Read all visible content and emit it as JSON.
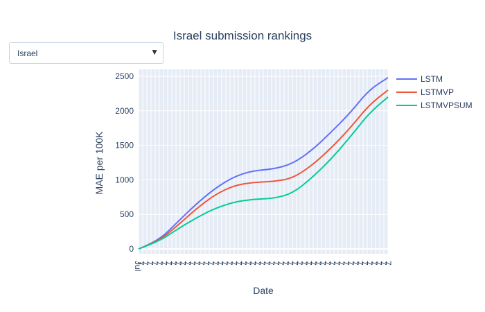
{
  "dropdown": {
    "selected": "Israel"
  },
  "chart_data": {
    "type": "line",
    "title": "Israel submission rankings",
    "xlabel": "Date",
    "ylabel": "MAE per 100K",
    "ylim": [
      -70,
      2600
    ],
    "yticks": [
      0,
      500,
      1000,
      1500,
      2000,
      2500
    ],
    "xticks_note": "dense rotated date labels (Jul ... Dec)",
    "grid": true,
    "legend": "top-right",
    "series": [
      {
        "name": "LSTM",
        "color": "#636efa",
        "values": [
          0,
          110,
          380,
          650,
          880,
          1050,
          1135,
          1155,
          1230,
          1420,
          1680,
          1960,
          2300,
          2480
        ]
      },
      {
        "name": "LSTMVP",
        "color": "#ef553b",
        "values": [
          0,
          105,
          330,
          580,
          790,
          920,
          965,
          975,
          1020,
          1200,
          1450,
          1740,
          2080,
          2300
        ]
      },
      {
        "name": "LSTMVPSUM",
        "color": "#00cc96",
        "values": [
          0,
          100,
          280,
          450,
          590,
          680,
          720,
          730,
          800,
          1020,
          1290,
          1610,
          1960,
          2200
        ]
      }
    ]
  }
}
